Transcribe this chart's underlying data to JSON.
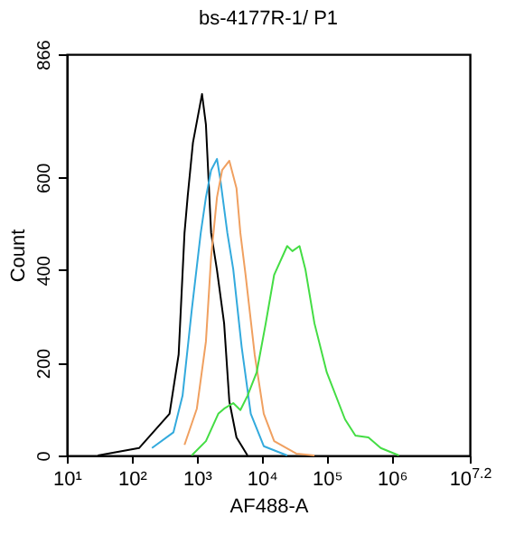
{
  "chart_data": {
    "type": "line",
    "title": "bs-4177R-1/ P1",
    "xlabel": "AF488-A",
    "ylabel": "Count",
    "log": "x",
    "grid": false,
    "legend": false,
    "marker": "none",
    "line_style": "solid",
    "xlim": [
      10,
      15848932
    ],
    "xticks": [
      {
        "value": 10,
        "label": "10¹"
      },
      {
        "value": 100,
        "label": "10²"
      },
      {
        "value": 1000,
        "label": "10³"
      },
      {
        "value": 10000,
        "label": "10⁴"
      },
      {
        "value": 100000,
        "label": "10⁵"
      },
      {
        "value": 1000000,
        "label": "10⁶"
      },
      {
        "value": 15848932,
        "label": "10$^{7.2}$"
      }
    ],
    "ylim": [
      0,
      866
    ],
    "yticks": [
      0,
      200,
      400,
      600,
      866
    ],
    "series": [
      {
        "color": "#000000",
        "x": [
          30,
          129,
          380,
          525,
          646,
          724,
          871,
          1202,
          1380,
          1660,
          2042,
          2630,
          3162,
          4074,
          6026
        ],
        "values": [
          0,
          16,
          90,
          218,
          480,
          560,
          675,
          780,
          714,
          480,
          400,
          285,
          117,
          39,
          0
        ]
      },
      {
        "color": "#33aadd",
        "x": [
          204,
          437,
          603,
          832,
          1148,
          1380,
          1660,
          2042,
          2291,
          2951,
          3631,
          4898,
          6761,
          10715,
          24547
        ],
        "values": [
          16,
          50,
          129,
          312,
          480,
          557,
          616,
          640,
          597,
          480,
          402,
          234,
          90,
          20,
          0
        ]
      },
      {
        "color": "#f0a060",
        "x": [
          646,
          1000,
          1380,
          1660,
          2042,
          2455,
          3162,
          4074,
          4677,
          5623,
          7762,
          10715,
          15488,
          33884,
          64565
        ],
        "values": [
          23,
          101,
          246,
          429,
          557,
          616,
          636,
          577,
          480,
          390,
          218,
          90,
          31,
          4,
          0
        ]
      },
      {
        "color": "#44dd44",
        "x": [
          832,
          1380,
          2138,
          2630,
          3631,
          4677,
          6026,
          8318,
          11482,
          15488,
          24547,
          29512,
          38019,
          46774,
          64565,
          100000,
          190546,
          275423,
          436516,
          676083,
          1288250
        ],
        "values": [
          0,
          31,
          90,
          101,
          113,
          98,
          129,
          179,
          285,
          390,
          452,
          441,
          452,
          402,
          285,
          179,
          78,
          43,
          39,
          16,
          0
        ]
      }
    ]
  }
}
